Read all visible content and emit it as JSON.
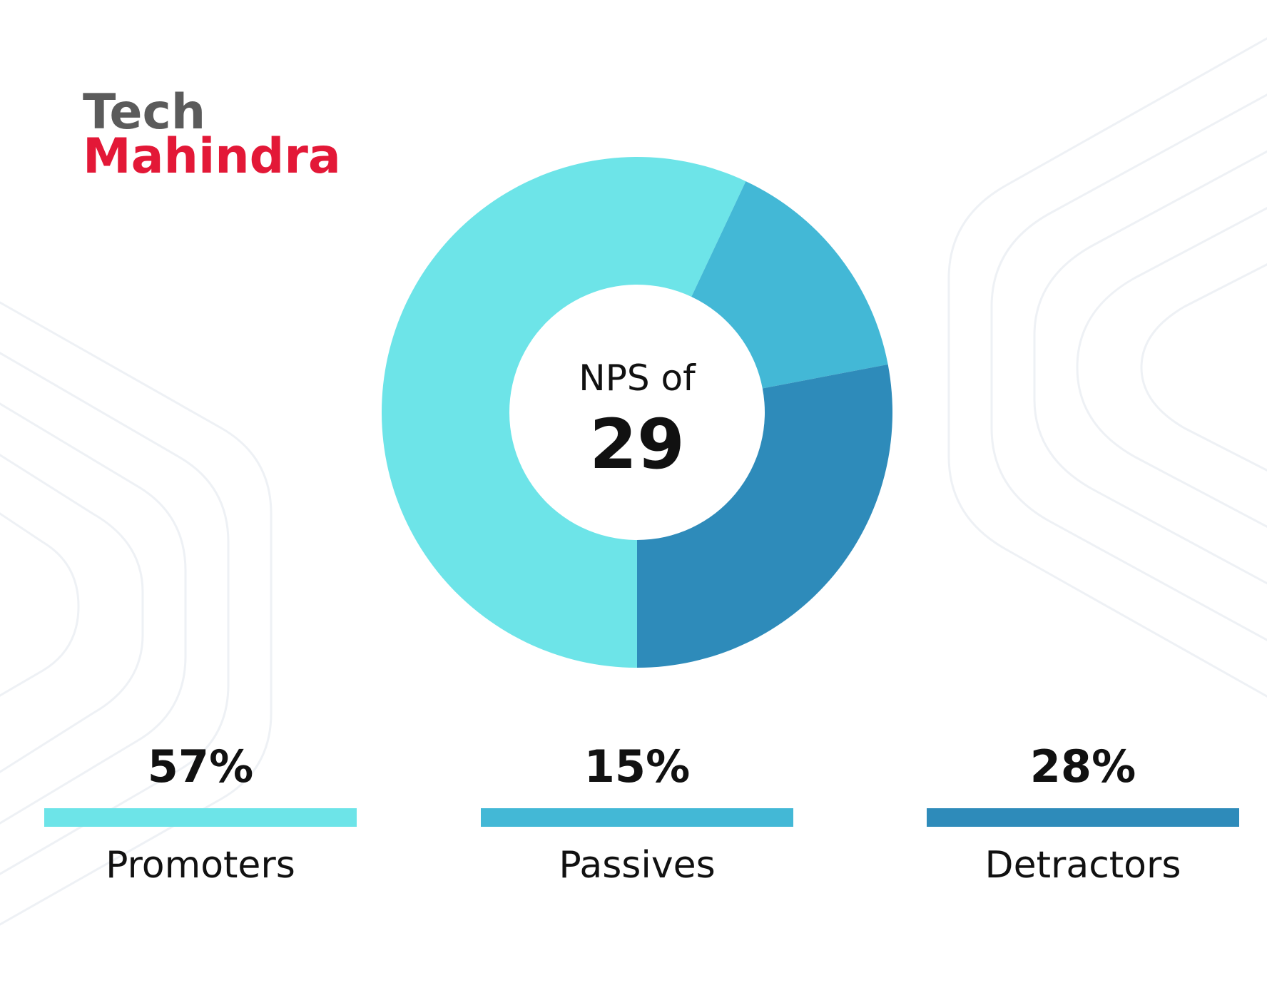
{
  "logo": {
    "line1": "Tech",
    "line2": "Mahindra"
  },
  "chart_data": {
    "type": "pie",
    "donut": true,
    "center_label": "NPS of",
    "center_value": 29,
    "categories": [
      "Promoters",
      "Passives",
      "Detractors"
    ],
    "values": [
      57,
      15,
      28
    ],
    "value_labels": [
      "57%",
      "15%",
      "28%"
    ],
    "colors": [
      "#6de4e8",
      "#43b8d6",
      "#2e8bba"
    ]
  }
}
